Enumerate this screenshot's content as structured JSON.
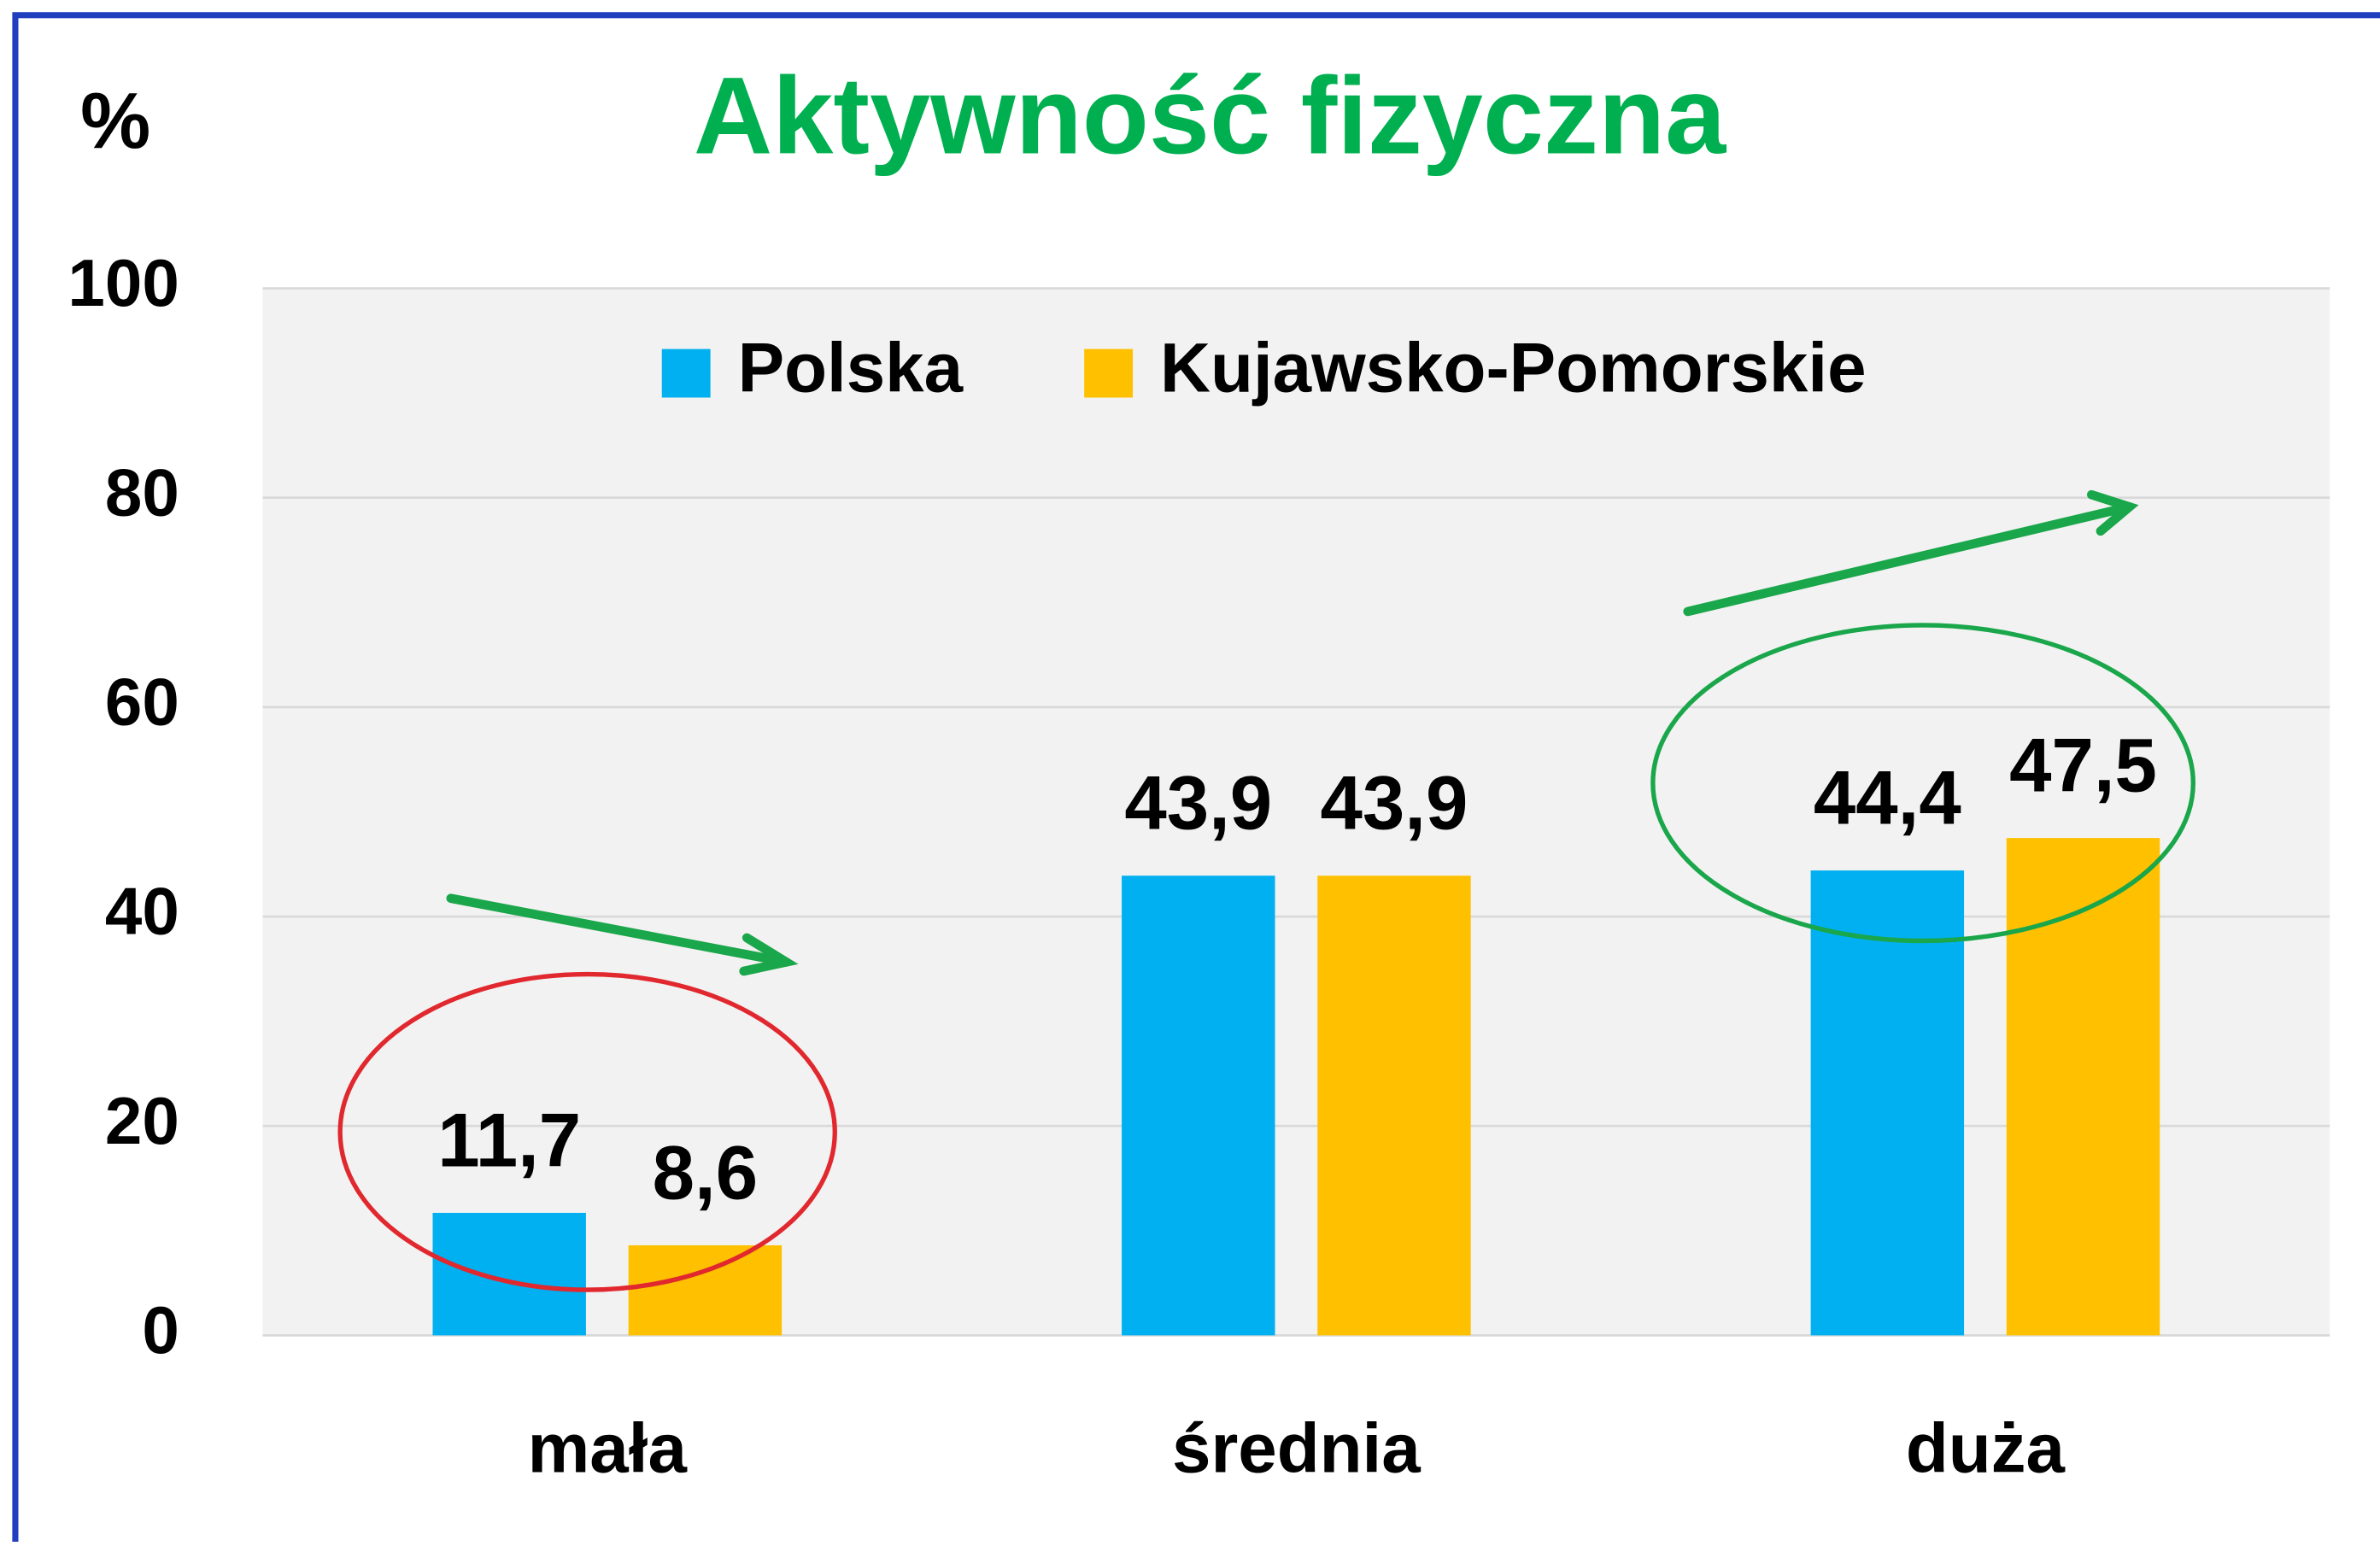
{
  "chart_data": {
    "type": "bar",
    "title": "Aktywność fizyczna",
    "y_label": "%",
    "categories": [
      "mała",
      "średnia",
      "duża"
    ],
    "series": [
      {
        "name": "Polska",
        "color": "#00b0f0",
        "values": [
          11.7,
          43.9,
          44.4
        ],
        "value_labels": [
          "11,7",
          "43,9",
          "44,4"
        ]
      },
      {
        "name": "Kujawsko-Pomorskie",
        "color": "#ffc000",
        "values": [
          8.6,
          43.9,
          47.5
        ],
        "value_labels": [
          "8,6",
          "43,9",
          "47,5"
        ]
      }
    ],
    "ylim": [
      0,
      100
    ],
    "yticks": [
      0,
      20,
      40,
      60,
      80,
      100
    ],
    "grid": true,
    "legend": "top"
  }
}
